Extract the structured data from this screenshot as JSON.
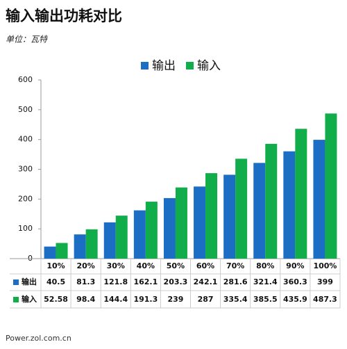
{
  "chart_data": {
    "type": "bar",
    "title": "输入输出功耗对比",
    "subtitle": "单位：瓦特",
    "source": "Power.zol.com.cn",
    "categories": [
      "10%",
      "20%",
      "30%",
      "40%",
      "50%",
      "60%",
      "70%",
      "80%",
      "90%",
      "100%"
    ],
    "series": [
      {
        "name": "输出",
        "color": "#1c6ec4",
        "values": [
          40.5,
          81.3,
          121.8,
          162.1,
          203.3,
          242.1,
          281.6,
          321.4,
          360.3,
          399
        ]
      },
      {
        "name": "输入",
        "color": "#12ad4b",
        "values": [
          52.58,
          98.4,
          144.4,
          191.3,
          239,
          287,
          335.4,
          385.5,
          435.9,
          487.3
        ]
      }
    ],
    "ylim": [
      0,
      600
    ],
    "yticks": [
      0,
      100,
      200,
      300,
      400,
      500,
      600
    ],
    "grid": false
  }
}
